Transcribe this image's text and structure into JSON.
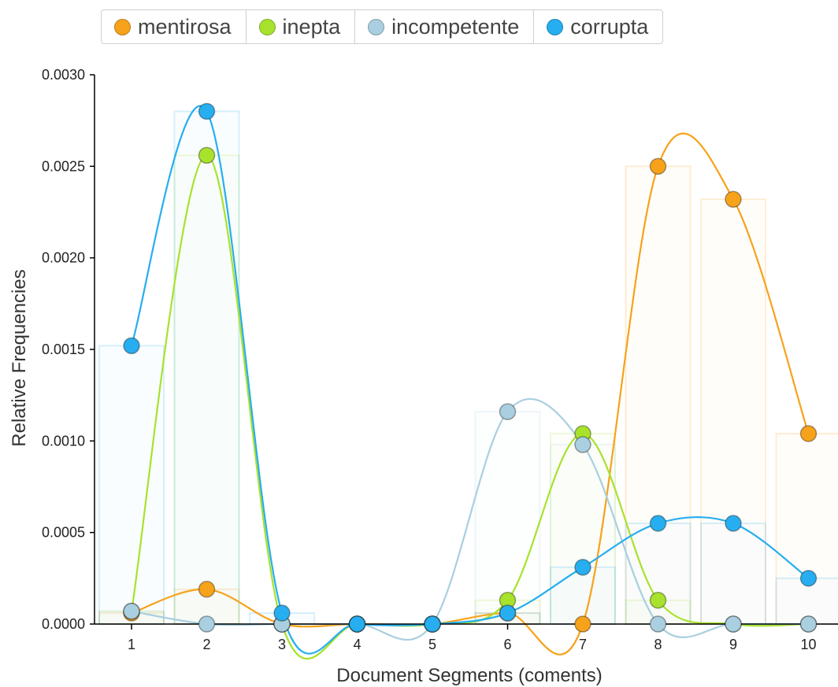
{
  "chart_data": {
    "type": "line",
    "xlabel": "Document Segments (coments)",
    "ylabel": "Relative Frequencies",
    "categories": [
      "1",
      "2",
      "3",
      "4",
      "5",
      "6",
      "7",
      "8",
      "9",
      "10"
    ],
    "ylim": [
      0,
      0.003
    ],
    "yticks": [
      "0.0000",
      "0.0005",
      "0.0010",
      "0.0015",
      "0.0020",
      "0.0025",
      "0.0030"
    ],
    "legend_position": "top",
    "series": [
      {
        "name": "mentirosa",
        "color": "#f7a21b",
        "values": [
          6e-05,
          0.00019,
          0.0,
          0.0,
          0.0,
          6e-05,
          0.0,
          0.0025,
          0.00232,
          0.00104
        ]
      },
      {
        "name": "inepta",
        "color": "#a8e22c",
        "values": [
          7e-05,
          0.00256,
          0.0,
          0.0,
          0.0,
          0.00013,
          0.00104,
          0.00013,
          0.0,
          0.0
        ]
      },
      {
        "name": "incompetente",
        "color": "#a9cfe0",
        "values": [
          7e-05,
          0.0,
          0.0,
          0.0,
          0.0,
          0.00116,
          0.00098,
          0.0,
          0.0,
          0.0
        ]
      },
      {
        "name": "corrupta",
        "color": "#27aef0",
        "values": [
          0.00152,
          0.0028,
          6e-05,
          0.0,
          0.0,
          6e-05,
          0.00031,
          0.00055,
          0.00055,
          0.00025
        ]
      }
    ]
  }
}
